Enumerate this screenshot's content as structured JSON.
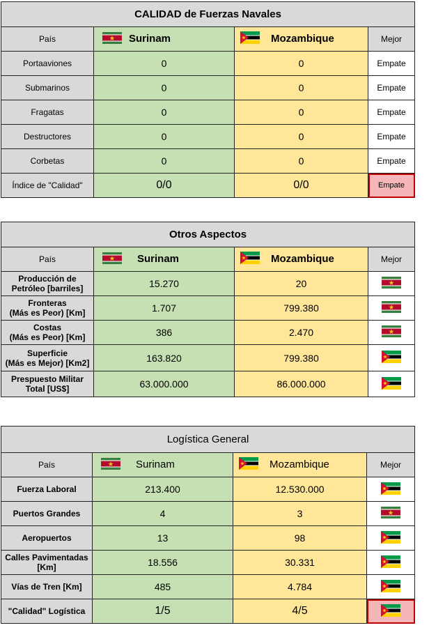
{
  "colors": {
    "green": "#c6e0b4",
    "yellow": "#ffe699",
    "grey": "#d9d9d9",
    "highlight_border": "#c00000"
  },
  "icons": {
    "surinam_flag": "surinam-flag-icon",
    "mozambique_flag": "mozambique-flag-icon"
  },
  "naval": {
    "title": "CALIDAD de Fuerzas Navales",
    "header": {
      "pais": "País",
      "c1": "Surinam",
      "c2": "Mozambique",
      "best": "Mejor"
    },
    "rows": [
      {
        "label": "Portaaviones",
        "v1": "0",
        "v2": "0",
        "best": "Empate"
      },
      {
        "label": "Submarinos",
        "v1": "0",
        "v2": "0",
        "best": "Empate"
      },
      {
        "label": "Fragatas",
        "v1": "0",
        "v2": "0",
        "best": "Empate"
      },
      {
        "label": "Destructores",
        "v1": "0",
        "v2": "0",
        "best": "Empate"
      },
      {
        "label": "Corbetas",
        "v1": "0",
        "v2": "0",
        "best": "Empate"
      }
    ],
    "summary": {
      "label": "Índice de \"Calidad\"",
      "v1": "0/0",
      "v2": "0/0",
      "best": "Empate"
    }
  },
  "otros": {
    "title": "Otros Aspectos",
    "header": {
      "pais": "País",
      "c1": "Surinam",
      "c2": "Mozambique",
      "best": "Mejor"
    },
    "rows": [
      {
        "label1": "Producción de",
        "label2": "Petróleo [barriles]",
        "v1": "15.270",
        "v2": "20",
        "best": "surinam"
      },
      {
        "label1": "Fronteras",
        "label2": "(Más es Peor) [Km]",
        "v1": "1.707",
        "v2": "799.380",
        "best": "surinam"
      },
      {
        "label1": "Costas",
        "label2": "(Más es Peor) [Km]",
        "v1": "386",
        "v2": "2.470",
        "best": "surinam"
      },
      {
        "label1": "Superficie",
        "label2": "(Más es Mejor) [Km2]",
        "v1": "163.820",
        "v2": "799.380",
        "best": "mozambique"
      },
      {
        "label1": "Prespuesto Militar",
        "label2": "Total [US$]",
        "v1": "63.000.000",
        "v2": "86.000.000",
        "best": "mozambique"
      }
    ]
  },
  "logistica": {
    "title": "Logística General",
    "header": {
      "pais": "País",
      "c1": "Surinam",
      "c2": "Mozambique",
      "best": "Mejor"
    },
    "rows": [
      {
        "label1": "Fuerza Laboral",
        "label2": "",
        "v1": "213.400",
        "v2": "12.530.000",
        "best": "mozambique"
      },
      {
        "label1": "Puertos Grandes",
        "label2": "",
        "v1": "4",
        "v2": "3",
        "best": "surinam"
      },
      {
        "label1": "Aeropuertos",
        "label2": "",
        "v1": "13",
        "v2": "98",
        "best": "mozambique"
      },
      {
        "label1": "Calles Pavimentadas",
        "label2": "[Km]",
        "v1": "18.556",
        "v2": "30.331",
        "best": "mozambique"
      },
      {
        "label1": "Vías de Tren [Km]",
        "label2": "",
        "v1": "485",
        "v2": "4.784",
        "best": "mozambique"
      }
    ],
    "summary": {
      "label": "\"Calidad\" Logística",
      "v1": "1/5",
      "v2": "4/5",
      "best": "mozambique"
    }
  }
}
